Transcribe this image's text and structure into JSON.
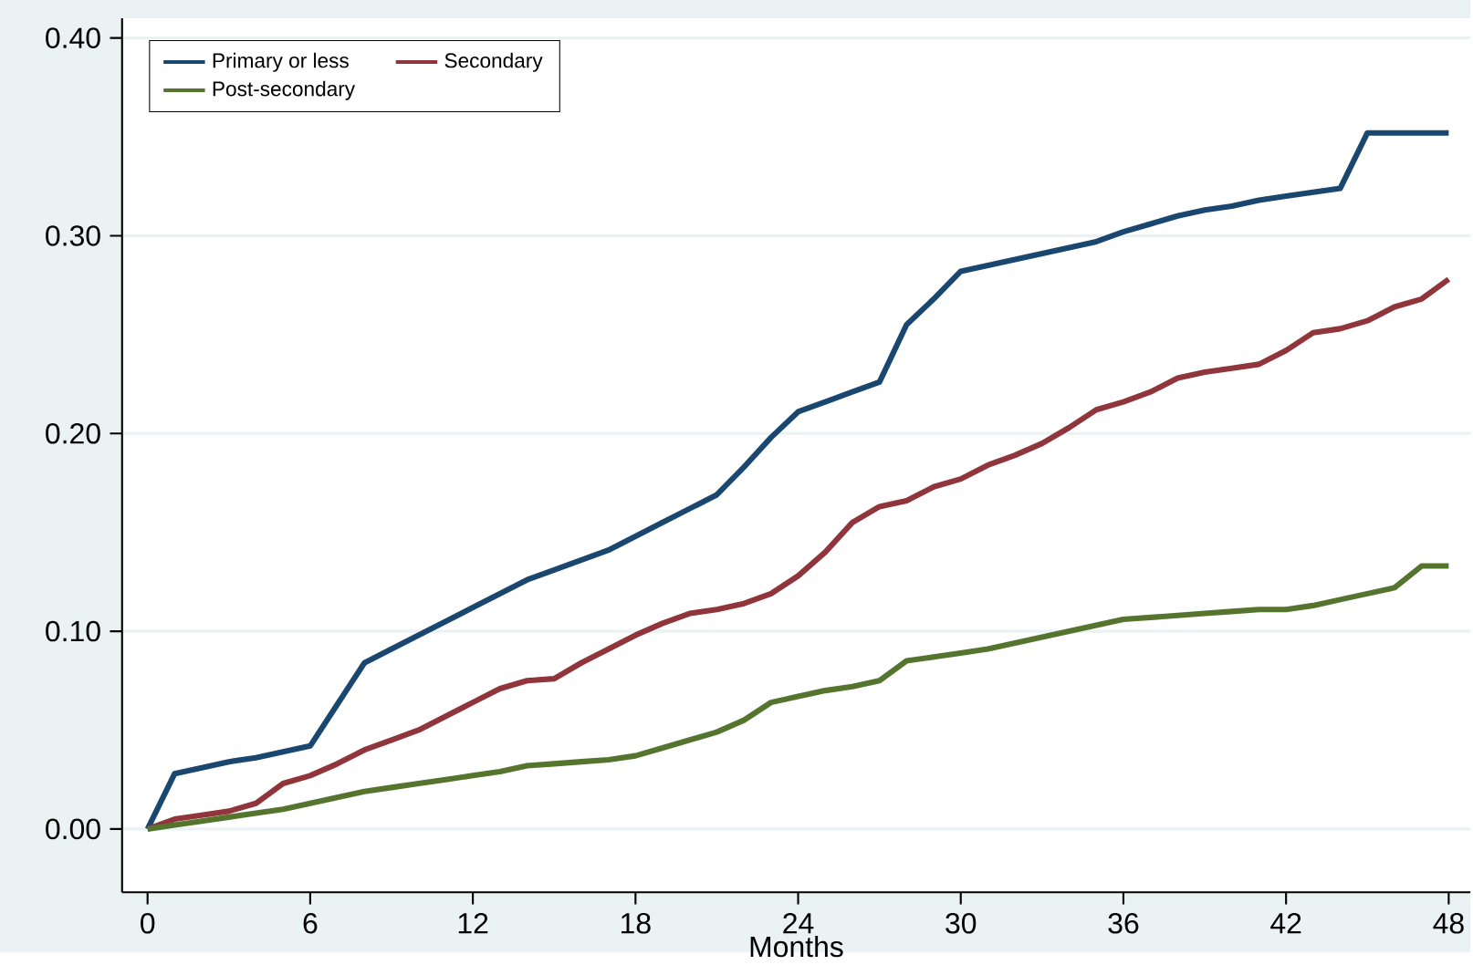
{
  "chart_data": {
    "type": "line",
    "xlabel": "Months",
    "x": [
      0,
      1,
      2,
      3,
      4,
      5,
      6,
      7,
      8,
      9,
      10,
      11,
      12,
      13,
      14,
      15,
      16,
      17,
      18,
      19,
      20,
      21,
      22,
      23,
      24,
      25,
      26,
      27,
      28,
      29,
      30,
      31,
      32,
      33,
      34,
      35,
      36,
      37,
      38,
      39,
      40,
      41,
      42,
      43,
      44,
      45,
      46,
      47,
      48
    ],
    "series": [
      {
        "name": "Primary or less",
        "color": "#1a476f",
        "values": [
          0,
          0.028,
          0.031,
          0.034,
          0.036,
          0.039,
          0.042,
          0.063,
          0.084,
          0.091,
          0.098,
          0.105,
          0.112,
          0.119,
          0.126,
          0.131,
          0.136,
          0.141,
          0.148,
          0.155,
          0.162,
          0.169,
          0.183,
          0.198,
          0.211,
          0.216,
          0.221,
          0.226,
          0.255,
          0.268,
          0.282,
          0.285,
          0.288,
          0.291,
          0.294,
          0.297,
          0.302,
          0.306,
          0.31,
          0.313,
          0.315,
          0.318,
          0.32,
          0.322,
          0.324,
          0.352,
          0.352,
          0.352,
          0.352
        ]
      },
      {
        "name": "Secondary",
        "color": "#90353b",
        "values": [
          0,
          0.005,
          0.007,
          0.009,
          0.013,
          0.023,
          0.027,
          0.033,
          0.04,
          0.045,
          0.05,
          0.057,
          0.064,
          0.071,
          0.075,
          0.076,
          0.084,
          0.091,
          0.098,
          0.104,
          0.109,
          0.111,
          0.114,
          0.119,
          0.128,
          0.14,
          0.155,
          0.163,
          0.166,
          0.173,
          0.177,
          0.184,
          0.189,
          0.195,
          0.203,
          0.212,
          0.216,
          0.221,
          0.228,
          0.231,
          0.233,
          0.235,
          0.242,
          0.251,
          0.253,
          0.257,
          0.264,
          0.268,
          0.278
        ]
      },
      {
        "name": "Post-secondary",
        "color": "#55752f",
        "values": [
          0,
          0.002,
          0.004,
          0.006,
          0.008,
          0.01,
          0.013,
          0.016,
          0.019,
          0.021,
          0.023,
          0.025,
          0.027,
          0.029,
          0.032,
          0.033,
          0.034,
          0.035,
          0.037,
          0.041,
          0.045,
          0.049,
          0.055,
          0.064,
          0.067,
          0.07,
          0.072,
          0.075,
          0.085,
          0.087,
          0.089,
          0.091,
          0.094,
          0.097,
          0.1,
          0.103,
          0.106,
          0.107,
          0.108,
          0.109,
          0.11,
          0.111,
          0.111,
          0.113,
          0.116,
          0.119,
          0.122,
          0.133,
          0.133
        ]
      }
    ],
    "xlim": [
      -0.94,
      48.8
    ],
    "ylim": [
      -0.032,
      0.41
    ],
    "xticks": [
      0,
      6,
      12,
      18,
      24,
      30,
      36,
      42,
      48
    ],
    "yticks": [
      {
        "value": 0,
        "label": "0.00"
      },
      {
        "value": 0.1,
        "label": "0.10"
      },
      {
        "value": 0.2,
        "label": "0.20"
      },
      {
        "value": 0.3,
        "label": "0.30"
      },
      {
        "value": 0.4,
        "label": "0.40"
      }
    ],
    "grid": "y",
    "legend": "top left",
    "marker": "none",
    "line_style": "solid"
  }
}
